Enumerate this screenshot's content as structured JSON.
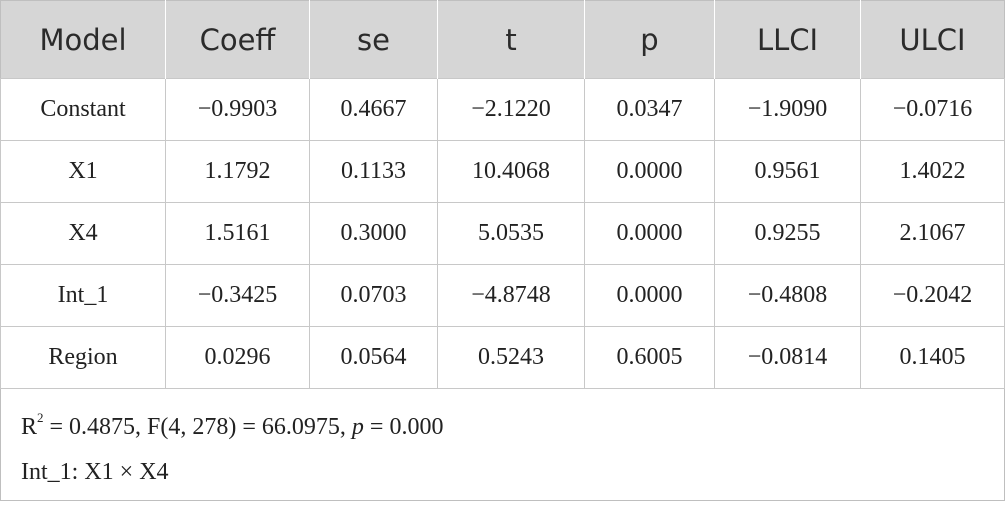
{
  "table": {
    "columns": [
      "Model",
      "Coeff",
      "se",
      "t",
      "p",
      "LLCI",
      "ULCI"
    ],
    "rows": [
      [
        "Constant",
        "−0.9903",
        "0.4667",
        "−2.1220",
        "0.0347",
        "−1.9090",
        "−0.0716"
      ],
      [
        "X1",
        "1.1792",
        "0.1133",
        "10.4068",
        "0.0000",
        "0.9561",
        "1.4022"
      ],
      [
        "X4",
        "1.5161",
        "0.3000",
        "5.0535",
        "0.0000",
        "0.9255",
        "2.1067"
      ],
      [
        "Int_1",
        "−0.3425",
        "0.0703",
        "−4.8748",
        "0.0000",
        "−0.4808",
        "−0.2042"
      ],
      [
        "Region",
        "0.0296",
        "0.0564",
        "0.5243",
        "0.6005",
        "−0.0814",
        "0.1405"
      ]
    ],
    "notes": [
      [
        "R",
        "2",
        " = 0.4875, F(4, 278) = 66.0975, ",
        "p",
        " = 0.000"
      ],
      [
        "Int_1: X1 × X4"
      ]
    ]
  }
}
